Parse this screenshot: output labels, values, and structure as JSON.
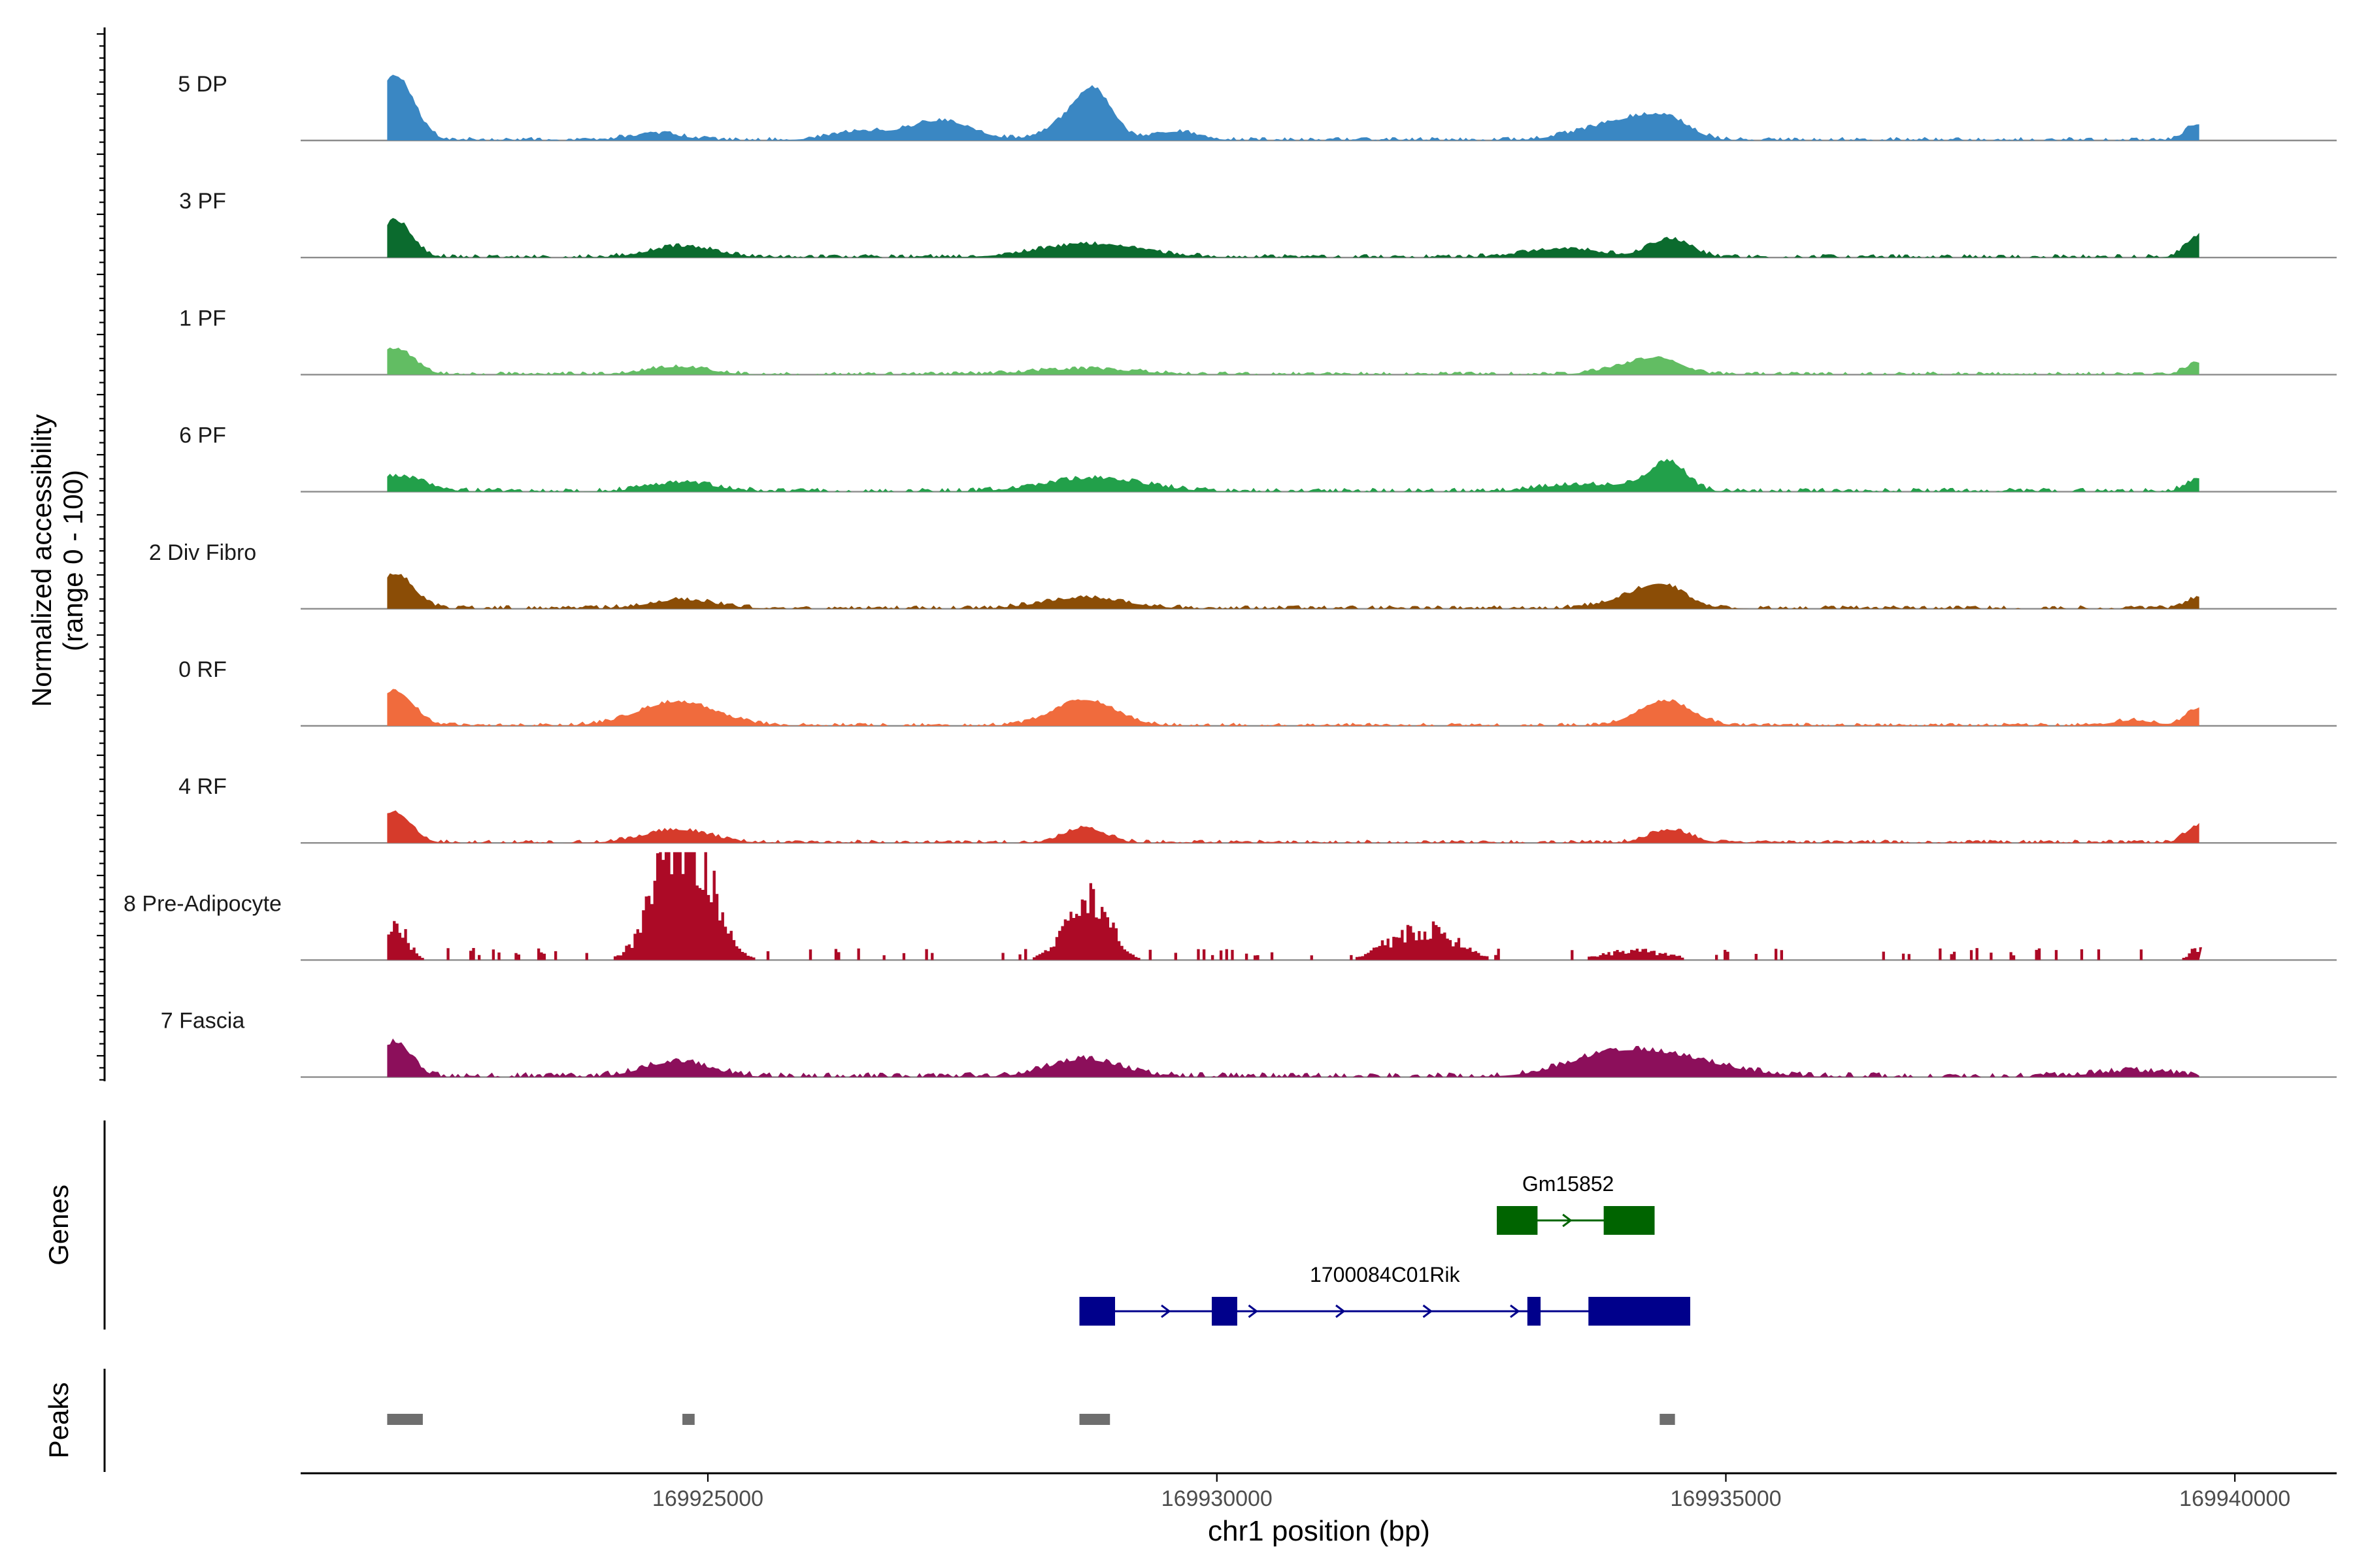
{
  "chart_data": {
    "type": "area",
    "chromosome": "chr1",
    "xlabel": "chr1 position (bp)",
    "ylabel_line1": "Normalized accessibility",
    "ylabel_line2": "(range 0 - 100)",
    "xlim": [
      169921000,
      169941000
    ],
    "xticks": [
      169925000,
      169930000,
      169935000,
      169940000
    ],
    "xtick_labels": [
      "169925000",
      "169930000",
      "169935000",
      "169940000"
    ],
    "ylim": [
      0,
      100
    ],
    "tracks": [
      {
        "name": "5 DP",
        "color": "#3a87c3",
        "peaks": [
          [
            169921930,
            60,
            180
          ],
          [
            169924500,
            6,
            260
          ],
          [
            169926500,
            8,
            300
          ],
          [
            169927300,
            18,
            300
          ],
          [
            169928650,
            22,
            260
          ],
          [
            169928800,
            30,
            160
          ],
          [
            169929600,
            8,
            220
          ],
          [
            169933700,
            8,
            320
          ],
          [
            169934100,
            14,
            260
          ],
          [
            169934450,
            16,
            220
          ],
          [
            169939640,
            15,
            120
          ]
        ],
        "noise": 2.5,
        "blocky": false
      },
      {
        "name": "3 PF",
        "color": "#0b6b2e",
        "peaks": [
          [
            169921930,
            34,
            160
          ],
          [
            169924750,
            10,
            320
          ],
          [
            169928750,
            12,
            500
          ],
          [
            169933400,
            8,
            360
          ],
          [
            169934450,
            17,
            200
          ],
          [
            169939640,
            20,
            120
          ]
        ],
        "noise": 2.5,
        "blocky": false
      },
      {
        "name": "1 PF",
        "color": "#62bd63",
        "peaks": [
          [
            169921930,
            24,
            180
          ],
          [
            169924700,
            7,
            300
          ],
          [
            169928700,
            5,
            500
          ],
          [
            169934100,
            9,
            280
          ],
          [
            169934400,
            10,
            200
          ],
          [
            169939640,
            11,
            120
          ]
        ],
        "noise": 2.2,
        "blocky": false
      },
      {
        "name": "6 PF",
        "color": "#22a04a",
        "peaks": [
          [
            169921950,
            14,
            260
          ],
          [
            169924750,
            8,
            320
          ],
          [
            169928800,
            12,
            480
          ],
          [
            169933500,
            6,
            350
          ],
          [
            169934250,
            8,
            260
          ],
          [
            169934450,
            22,
            160
          ],
          [
            169939640,
            11,
            120
          ]
        ],
        "noise": 2.8,
        "blocky": false
      },
      {
        "name": "2 Div Fibro",
        "color": "#8b4d06",
        "peaks": [
          [
            169921930,
            32,
            180
          ],
          [
            169924750,
            8,
            320
          ],
          [
            169928700,
            10,
            400
          ],
          [
            169934200,
            13,
            320
          ],
          [
            169934400,
            12,
            200
          ],
          [
            169939640,
            10,
            120
          ]
        ],
        "noise": 2.5,
        "blocky": false
      },
      {
        "name": "0 RF",
        "color": "#f06b3d",
        "peaks": [
          [
            169921930,
            32,
            180
          ],
          [
            169924700,
            22,
            380
          ],
          [
            169928700,
            24,
            300
          ],
          [
            169934400,
            23,
            260
          ],
          [
            169939000,
            5,
            200
          ],
          [
            169939640,
            16,
            120
          ]
        ],
        "noise": 2.2,
        "blocky": false
      },
      {
        "name": "4 RF",
        "color": "#d63b2b",
        "peaks": [
          [
            169921930,
            28,
            160
          ],
          [
            169924700,
            12,
            320
          ],
          [
            169928700,
            14,
            200
          ],
          [
            169934450,
            12,
            200
          ],
          [
            169939640,
            16,
            120
          ]
        ],
        "noise": 2.3,
        "blocky": false
      },
      {
        "name": "8 Pre-Adipocyte",
        "color": "#ac0a26",
        "peaks": [
          [
            169924640,
            95,
            220
          ],
          [
            169924900,
            70,
            220
          ],
          [
            169928650,
            30,
            220
          ],
          [
            169928780,
            40,
            180
          ],
          [
            169932100,
            30,
            260
          ],
          [
            169931700,
            12,
            200
          ],
          [
            169921930,
            34,
            120
          ],
          [
            169934100,
            10,
            300
          ],
          [
            169939640,
            12,
            100
          ]
        ],
        "noise": 7.0,
        "blocky": true
      },
      {
        "name": "7 Fascia",
        "color": "#8c0f5b",
        "peaks": [
          [
            169921930,
            32,
            160
          ],
          [
            169924700,
            14,
            320
          ],
          [
            169928700,
            16,
            350
          ],
          [
            169933800,
            8,
            400
          ],
          [
            169934300,
            20,
            600
          ],
          [
            169939000,
            5,
            400
          ]
        ],
        "noise": 3.5,
        "blocky": false
      }
    ],
    "genes": [
      {
        "name": "Gm15852",
        "color": "#006400",
        "strand": "+",
        "start": 169932750,
        "end": 169934150,
        "exons": [
          [
            169932750,
            169933150
          ],
          [
            169933800,
            169934300
          ]
        ]
      },
      {
        "name": "1700084C01Rik",
        "color": "#00008b",
        "strand": "+",
        "start": 169928650,
        "end": 169934650,
        "exons": [
          [
            169928650,
            169929000
          ],
          [
            169929950,
            169930200
          ],
          [
            169933050,
            169933180
          ],
          [
            169933650,
            169934650
          ]
        ]
      }
    ],
    "peaks": [
      [
        169921850,
        169922200
      ],
      [
        169924750,
        169924870
      ],
      [
        169928650,
        169928950
      ],
      [
        169934350,
        169934500
      ]
    ],
    "peak_color": "#6e6e6e",
    "panel_labels": {
      "genes": "Genes",
      "peaks": "Peaks"
    }
  }
}
